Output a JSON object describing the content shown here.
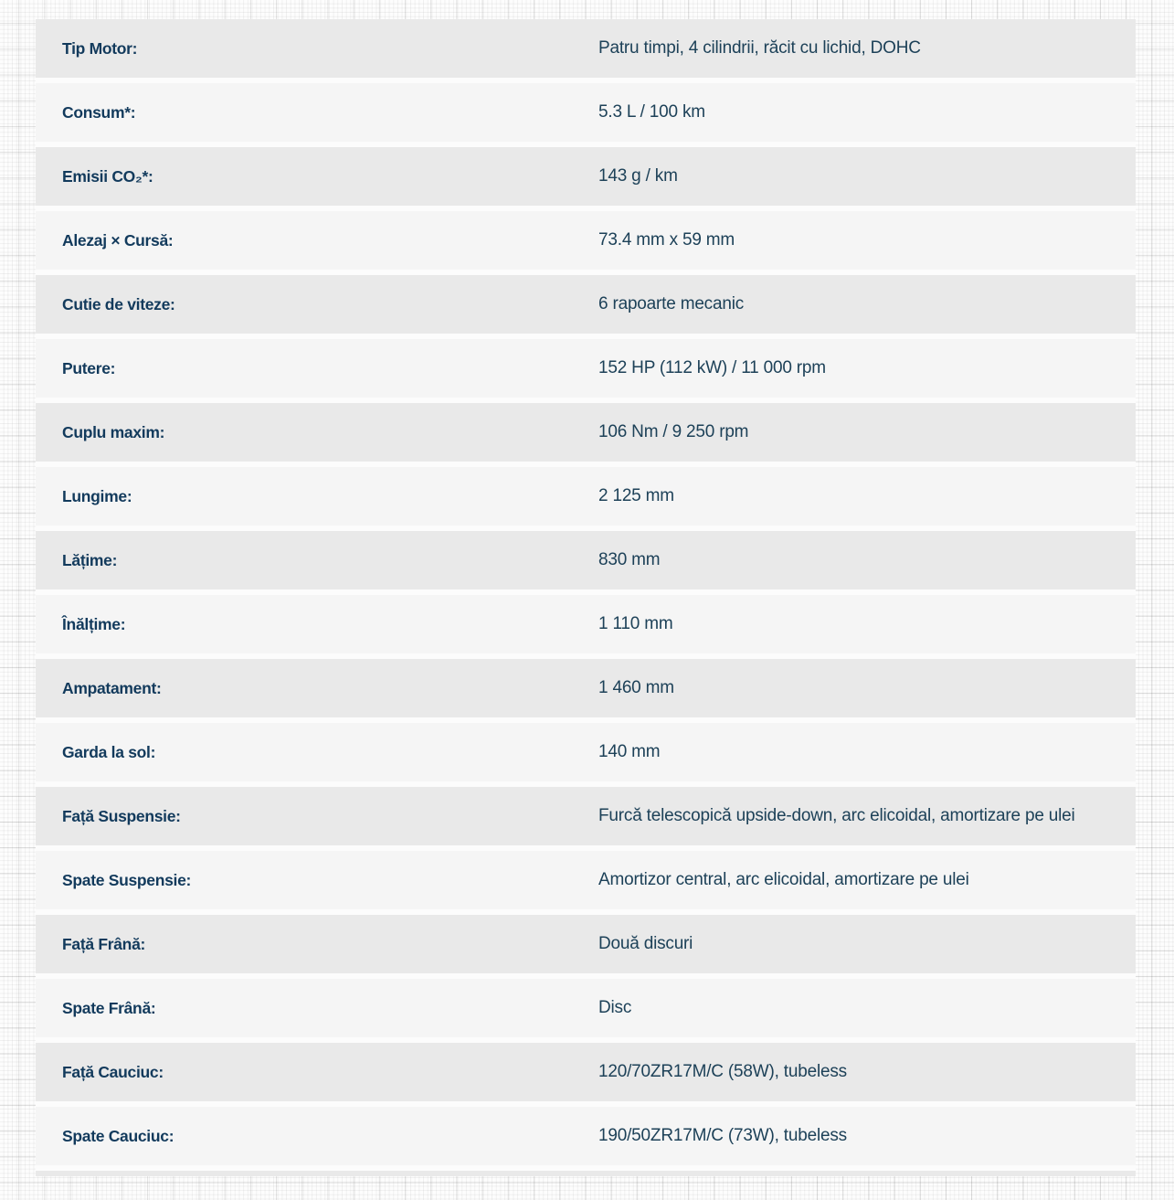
{
  "theme": {
    "label_color": "#123a5c",
    "value_color": "#1d4158",
    "row_gray": "#e9e9e9",
    "row_light": "#f5f5f5",
    "table_bg": "#fcfcfc"
  },
  "spec_table": {
    "rows": [
      {
        "label": "Tip Motor:",
        "value": "Patru timpi, 4 cilindrii, răcit cu lichid, DOHC"
      },
      {
        "label": "Consum*:",
        "value": "5.3 L / 100 km"
      },
      {
        "label": "Emisii CO₂*:",
        "value": "143 g / km"
      },
      {
        "label": "Alezaj × Cursă:",
        "value": "73.4 mm x 59 mm"
      },
      {
        "label": "Cutie de viteze:",
        "value": "6 rapoarte mecanic"
      },
      {
        "label": "Putere:",
        "value": "152 HP (112 kW) / 11 000 rpm"
      },
      {
        "label": "Cuplu maxim:",
        "value": "106 Nm / 9 250 rpm"
      },
      {
        "label": "Lungime:",
        "value": "2 125 mm"
      },
      {
        "label": "Lățime:",
        "value": "830 mm"
      },
      {
        "label": "Înălțime:",
        "value": "1 110 mm"
      },
      {
        "label": "Ampatament:",
        "value": "1 460 mm"
      },
      {
        "label": "Garda la sol:",
        "value": "140 mm"
      },
      {
        "label": "Față Suspensie:",
        "value": "Furcă telescopică upside-down, arc elicoidal, amortizare pe ulei"
      },
      {
        "label": "Spate Suspensie:",
        "value": "Amortizor central, arc elicoidal, amortizare pe ulei"
      },
      {
        "label": "Față Frână:",
        "value": "Două discuri"
      },
      {
        "label": "Spate Frână:",
        "value": "Disc"
      },
      {
        "label": "Față Cauciuc:",
        "value": "120/70ZR17M/C (58W), tubeless"
      },
      {
        "label": "Spate Cauciuc:",
        "value": "190/50ZR17M/C (73W), tubeless"
      }
    ]
  }
}
